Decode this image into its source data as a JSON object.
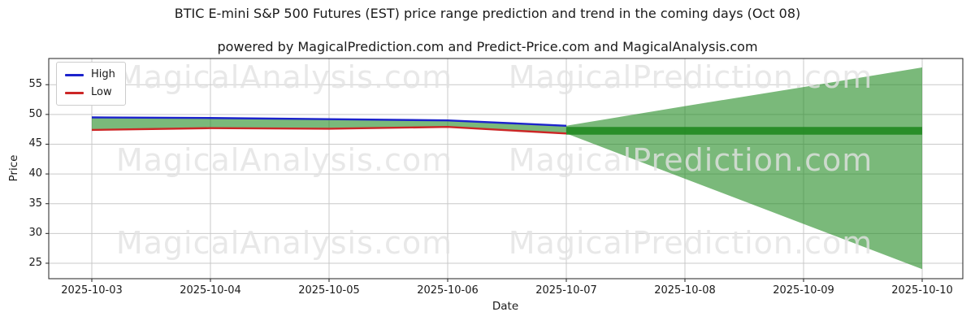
{
  "header": {
    "title": "BTIC E-mini S&P 500 Futures (EST) price range prediction and trend in the coming days (Oct 08)",
    "subtitle": "powered by MagicalPrediction.com and Predict-Price.com and MagicalAnalysis.com"
  },
  "legend": {
    "items": [
      {
        "label": "High",
        "color": "#1c23cc"
      },
      {
        "label": "Low",
        "color": "#cc2626"
      }
    ]
  },
  "axes": {
    "xlabel": "Date",
    "ylabel": "Price",
    "yticks": [
      25,
      30,
      35,
      40,
      45,
      50,
      55
    ]
  },
  "watermark": {
    "left": "MagicalAnalysis.com",
    "right": "MagicalPrediction.com"
  },
  "colors": {
    "grid": "#c9c9c9",
    "spine": "#222222",
    "tick": "#222222",
    "fill": "rgba(34,139,34,0.60)",
    "band": "rgba(30,135,30,0.88)",
    "high": "#1c23cc",
    "low": "#cc2626"
  },
  "chart_data": {
    "type": "line",
    "title": "BTIC E-mini S&P 500 Futures (EST) price range prediction and trend in the coming days (Oct 08)",
    "xlabel": "Date",
    "ylabel": "Price",
    "grid": true,
    "legend_position": "upper left",
    "ylim": [
      22.4,
      59.4
    ],
    "x": [
      "2025-10-03",
      "2025-10-04",
      "2025-10-05",
      "2025-10-06",
      "2025-10-07",
      "2025-10-08",
      "2025-10-09",
      "2025-10-10"
    ],
    "series": [
      {
        "name": "High",
        "color": "#1c23cc",
        "values": [
          49.5,
          49.4,
          49.2,
          49.0,
          48.1,
          null,
          null,
          null
        ]
      },
      {
        "name": "Low",
        "color": "#cc2626",
        "values": [
          47.4,
          47.7,
          47.6,
          47.9,
          46.8,
          null,
          null,
          null
        ]
      }
    ],
    "forecast_fan": {
      "x": [
        "2025-10-07",
        "2025-10-08",
        "2025-10-09",
        "2025-10-10"
      ],
      "upper": [
        48.1,
        51.4,
        54.6,
        57.9
      ],
      "lower": [
        46.8,
        39.2,
        31.6,
        24.0
      ]
    },
    "forecast_band": {
      "x_start": "2025-10-07",
      "x_end": "2025-10-10",
      "top": 47.9,
      "bottom": 46.6
    }
  }
}
